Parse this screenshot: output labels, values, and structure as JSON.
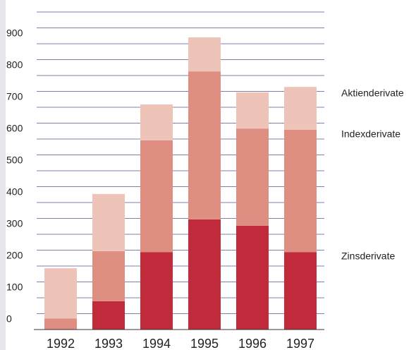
{
  "chart_data": {
    "type": "stacked_bar",
    "categories": [
      "1992",
      "1993",
      "1994",
      "1995",
      "1996",
      "1997"
    ],
    "series": [
      {
        "name": "Zinsderivate",
        "color": "#c12a3a",
        "values": [
          0,
          89,
          244,
          347,
          327,
          244
        ]
      },
      {
        "name": "Indexderivate",
        "color": "#df8f82",
        "values": [
          35,
          158,
          352,
          466,
          306,
          385
        ]
      },
      {
        "name": "Aktienderivate",
        "color": "#eec4b9",
        "values": [
          158,
          180,
          113,
          107,
          114,
          135
        ]
      }
    ],
    "ylim": [
      0,
      1000
    ],
    "yticks": [
      0,
      100,
      200,
      300,
      400,
      500,
      600,
      700,
      800,
      900
    ],
    "minor_yticks": [
      50,
      150,
      250,
      350,
      450,
      550,
      650,
      750,
      850,
      950,
      1000
    ],
    "grid": true
  }
}
